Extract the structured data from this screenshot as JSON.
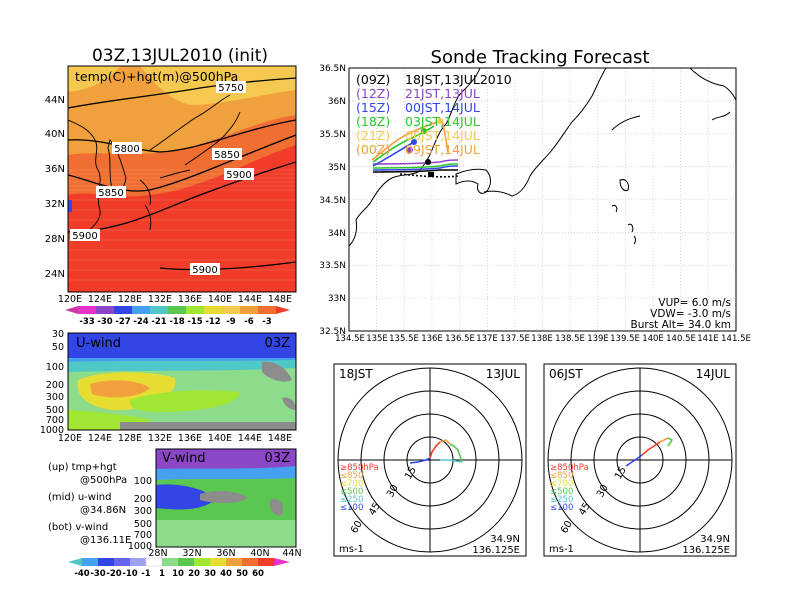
{
  "colors": {
    "red": "#f03c28",
    "orange_red": "#f06e32",
    "orange": "#f0a03c",
    "light_orange": "#f5c850",
    "yellow": "#e6dc32",
    "light_green": "#a0e632",
    "green": "#5ac850",
    "light_green2": "#8cdc8c",
    "blue": "#3246e6",
    "purple": "#8c46c8",
    "grey": "#8c8c8c"
  },
  "left": {
    "main_title": "03Z,13JUL2010 (init)",
    "top_map": {
      "label": "temp(C)+hgt(m)@500hPa",
      "lat_ticks": [
        "44N",
        "40N",
        "36N",
        "32N",
        "28N",
        "24N"
      ],
      "lon_ticks": [
        "120E",
        "124E",
        "128E",
        "132E",
        "136E",
        "140E",
        "144E",
        "148E"
      ],
      "contour_labels": [
        "5750",
        "5800",
        "5850",
        "5850",
        "5900",
        "5900",
        "5900"
      ]
    },
    "temp_colorbar": [
      "-33",
      "-30",
      "-27",
      "-24",
      "-21",
      "-18",
      "-15",
      "-12",
      "-9",
      "-6",
      "-3"
    ],
    "uwind": {
      "label": "U-wind",
      "time": "03Z",
      "p_ticks": [
        "30",
        "50",
        "100",
        "200",
        "300",
        "500",
        "700",
        "1000"
      ],
      "lon_ticks": [
        "120E",
        "124E",
        "128E",
        "132E",
        "136E",
        "140E",
        "144E",
        "148E"
      ]
    },
    "vwind": {
      "label": "V-wind",
      "time": "03Z",
      "p_ticks": [
        "100",
        "200",
        "300",
        "500",
        "700",
        "1000"
      ],
      "lat_ticks": [
        "28N",
        "32N",
        "36N",
        "40N",
        "44N"
      ]
    },
    "wind_colorbar": [
      "-40",
      "-30",
      "-20",
      "-10",
      "-1",
      "1",
      "10",
      "20",
      "30",
      "40",
      "50",
      "60"
    ],
    "notes": [
      {
        "label": "(up) tmp+hgt",
        "sub": "@500hPa"
      },
      {
        "label": "(mid) u-wind",
        "sub": "@34.86N"
      },
      {
        "label": "(bot) v-wind",
        "sub": "@136.11E"
      }
    ]
  },
  "right": {
    "title": "Sonde Tracking Forecast",
    "lat_ticks": [
      "36.5N",
      "36N",
      "35.5N",
      "35N",
      "34.5N",
      "34N",
      "33.5N",
      "33N",
      "32.5N"
    ],
    "lon_ticks": [
      "134.5E",
      "135E",
      "135.5E",
      "136E",
      "136.5E",
      "137E",
      "137.5E",
      "138E",
      "138.5E",
      "139E",
      "139.5E",
      "140E",
      "140.5E",
      "141E",
      "141.5E"
    ],
    "legend": [
      {
        "tag": "(09Z)",
        "text": "18JST,13JUL2010",
        "color": "#000000"
      },
      {
        "tag": "(12Z)",
        "text": "21JST,13JUL",
        "color": "#8c46c8"
      },
      {
        "tag": "(15Z)",
        "text": "00JST,14JUL",
        "color": "#3246e6"
      },
      {
        "tag": "(18Z)",
        "text": "03JST,14JUL",
        "color": "#28c828"
      },
      {
        "tag": "(21Z)",
        "text": "06JST,14JUL",
        "color": "#f5c850"
      },
      {
        "tag": "(00Z)",
        "text": "09JST,14JUL",
        "color": "#f0a03c"
      }
    ],
    "params": [
      "VUP= 6.0 m/s",
      "VDW= -3.0 m/s",
      "Burst Alt= 34.0 km"
    ]
  },
  "hodographs": [
    {
      "time": "18JST",
      "date": "13JUL",
      "rings": [
        "15",
        "30",
        "45",
        "60"
      ],
      "lat": "34.9N",
      "lon": "136.125E",
      "units": "ms-1",
      "levels": [
        {
          "label": "≥850hPa",
          "color": "#f03c28"
        },
        {
          "label": "≤850",
          "color": "#f0a03c"
        },
        {
          "label": "≤700",
          "color": "#e6dc32"
        },
        {
          "label": "≤500",
          "color": "#5ac850"
        },
        {
          "label": "≤250",
          "color": "#50c8c8"
        },
        {
          "label": "≤100",
          "color": "#3246e6"
        }
      ]
    },
    {
      "time": "06JST",
      "date": "14JUL",
      "rings": [
        "15",
        "30",
        "45",
        "60"
      ],
      "lat": "34.9N",
      "lon": "136.125E",
      "units": "ms-1",
      "levels": [
        {
          "label": "≥850hPa",
          "color": "#f03c28"
        },
        {
          "label": "≤850",
          "color": "#f0a03c"
        },
        {
          "label": "≤700",
          "color": "#e6dc32"
        },
        {
          "label": "≤500",
          "color": "#5ac850"
        },
        {
          "label": "≤250",
          "color": "#50c8c8"
        },
        {
          "label": "≤100",
          "color": "#3246e6"
        }
      ]
    }
  ],
  "chart_data": [
    {
      "type": "heatmap",
      "title": "03Z,13JUL2010 (init)",
      "subtitle": "temp(C)+hgt(m)@500hPa",
      "xlim": [
        120,
        150
      ],
      "ylim": [
        22,
        47
      ],
      "color_levels": [
        -33,
        -30,
        -27,
        -24,
        -21,
        -18,
        -15,
        -12,
        -9,
        -6,
        -3
      ],
      "contours": [
        5750,
        5800,
        5850,
        5900
      ]
    },
    {
      "type": "heatmap",
      "title": "U-wind",
      "xlim": [
        120,
        150
      ],
      "ylim": [
        1000,
        30
      ]
    },
    {
      "type": "heatmap",
      "title": "V-wind",
      "xlim": [
        28,
        44
      ],
      "ylim": [
        1000,
        100
      ]
    },
    {
      "type": "line",
      "title": "Sonde Tracking Forecast",
      "xlim": [
        134.5,
        141.5
      ],
      "ylim": [
        32.5,
        36.5
      ]
    }
  ]
}
